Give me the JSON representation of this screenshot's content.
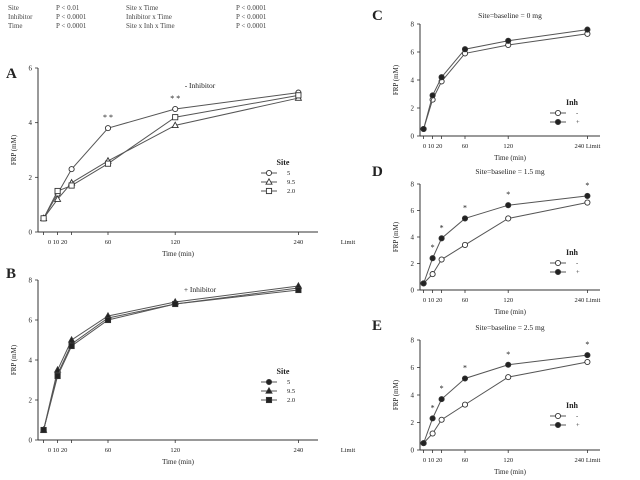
{
  "stats_table": [
    [
      "Site",
      "P < 0.01",
      "Site x Time",
      "P < 0.0001"
    ],
    [
      "Inhibitor",
      "P < 0.0001",
      "Inhibitor x Time",
      "P < 0.0001"
    ],
    [
      "Time",
      "P < 0.0001",
      "Site x Inh x Time",
      "P < 0.0001"
    ]
  ],
  "chart_data": [
    {
      "panel_letter": "A",
      "type": "line",
      "title": "- Inhibitor",
      "xlabel": "Time (min)",
      "ylabel": "FRP (mM)",
      "x": [
        0,
        10,
        20,
        60,
        120,
        240
      ],
      "x_tick_labels": [
        "0 10 20",
        "60",
        "120",
        "240",
        "Limit"
      ],
      "ylim": [
        0,
        6
      ],
      "y_ticks": [
        0,
        2,
        4,
        6
      ],
      "markers": [
        "* *",
        "* *"
      ],
      "legend_title": "Site",
      "legend_position": "right",
      "series": [
        {
          "name": "5",
          "values": [
            0.5,
            1.4,
            2.3,
            3.8,
            4.5,
            5.1
          ],
          "marker": "circle-open"
        },
        {
          "name": "9.5",
          "values": [
            0.5,
            1.2,
            1.8,
            2.6,
            3.9,
            4.9
          ],
          "marker": "triangle-open"
        },
        {
          "name": "2.0",
          "values": [
            0.5,
            1.5,
            1.7,
            2.5,
            4.2,
            5.0
          ],
          "marker": "square-open"
        }
      ]
    },
    {
      "panel_letter": "B",
      "type": "line",
      "title": "+ Inhibitor",
      "xlabel": "Time (min)",
      "ylabel": "FRP (mM)",
      "x": [
        0,
        10,
        20,
        60,
        120,
        240
      ],
      "x_tick_labels": [
        "0 10 20",
        "60",
        "120",
        "240",
        "Limit"
      ],
      "ylim": [
        0,
        8
      ],
      "y_ticks": [
        0,
        2,
        4,
        6,
        8
      ],
      "legend_title": "Site",
      "legend_position": "right",
      "series": [
        {
          "name": "5",
          "values": [
            0.5,
            3.3,
            4.8,
            6.1,
            6.8,
            7.6
          ],
          "marker": "circle-filled"
        },
        {
          "name": "9.5",
          "values": [
            0.5,
            3.5,
            5.0,
            6.2,
            6.9,
            7.7
          ],
          "marker": "triangle-filled"
        },
        {
          "name": "2.0",
          "values": [
            0.5,
            3.2,
            4.7,
            6.0,
            6.8,
            7.5
          ],
          "marker": "square-filled"
        }
      ]
    },
    {
      "panel_letter": "C",
      "type": "line",
      "title": "Site=baseline = 0 mg",
      "xlabel": "Time (min)",
      "ylabel": "FRP (mM)",
      "x": [
        0,
        10,
        20,
        60,
        120,
        240
      ],
      "x_tick_labels": [
        "0 10 20",
        "60",
        "120",
        "240 Limit"
      ],
      "ylim": [
        0,
        8
      ],
      "y_ticks": [
        0,
        2,
        4,
        6,
        8
      ],
      "legend_title": "Inh",
      "legend_position": "right",
      "series": [
        {
          "name": "-",
          "values": [
            0.5,
            2.6,
            3.9,
            5.9,
            6.5,
            7.3
          ],
          "marker": "circle-open"
        },
        {
          "name": "+",
          "values": [
            0.5,
            2.9,
            4.2,
            6.2,
            6.8,
            7.6
          ],
          "marker": "circle-filled"
        }
      ]
    },
    {
      "panel_letter": "D",
      "type": "line",
      "title": "Site=baseline = 1.5 mg",
      "xlabel": "Time (min)",
      "ylabel": "FRP (mM)",
      "x": [
        0,
        10,
        20,
        60,
        120,
        240
      ],
      "x_tick_labels": [
        "0 10 20",
        "60",
        "120",
        "240 Limit"
      ],
      "ylim": [
        0,
        8
      ],
      "y_ticks": [
        0,
        2,
        4,
        6,
        8
      ],
      "markers": [
        "*",
        "*",
        "*",
        "*",
        "*"
      ],
      "legend_title": "Inh",
      "legend_position": "right",
      "series": [
        {
          "name": "-",
          "values": [
            0.5,
            1.2,
            2.3,
            3.4,
            5.4,
            6.6
          ],
          "marker": "circle-open"
        },
        {
          "name": "+",
          "values": [
            0.5,
            2.4,
            3.9,
            5.4,
            6.4,
            7.1
          ],
          "marker": "circle-filled"
        }
      ]
    },
    {
      "panel_letter": "E",
      "type": "line",
      "title": "Site=baseline = 2.5 mg",
      "xlabel": "Time (min)",
      "ylabel": "FRP (mM)",
      "x": [
        0,
        10,
        20,
        60,
        120,
        240
      ],
      "x_tick_labels": [
        "0 10 20",
        "60",
        "120",
        "240 Limit"
      ],
      "ylim": [
        0,
        8
      ],
      "y_ticks": [
        0,
        2,
        4,
        6,
        8
      ],
      "markers": [
        "*",
        "*",
        "*",
        "*",
        "*"
      ],
      "legend_title": "Inh",
      "legend_position": "right",
      "series": [
        {
          "name": "-",
          "values": [
            0.5,
            1.2,
            2.2,
            3.3,
            5.3,
            6.4
          ],
          "marker": "circle-open"
        },
        {
          "name": "+",
          "values": [
            0.5,
            2.3,
            3.7,
            5.2,
            6.2,
            6.9
          ],
          "marker": "circle-filled"
        }
      ]
    }
  ]
}
